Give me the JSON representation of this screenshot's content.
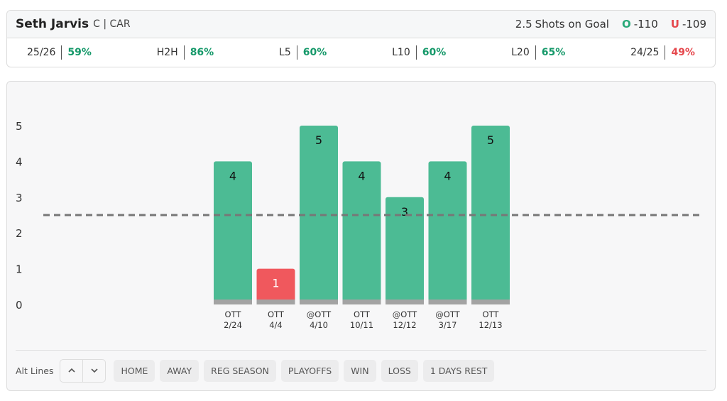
{
  "header": {
    "player": "Seth Jarvis",
    "position": "C | CAR",
    "line": 2.5,
    "stat": "Shots on Goal",
    "over_label": "O",
    "over_odds": -110,
    "under_label": "U",
    "under_odds": -109
  },
  "stats": [
    {
      "label": "25/26",
      "value": "59%",
      "color": "#16996a"
    },
    {
      "label": "H2H",
      "value": "86%",
      "color": "#16996a"
    },
    {
      "label": "L5",
      "value": "60%",
      "color": "#16996a"
    },
    {
      "label": "L10",
      "value": "60%",
      "color": "#16996a"
    },
    {
      "label": "L20",
      "value": "65%",
      "color": "#16996a"
    },
    {
      "label": "24/25",
      "value": "49%",
      "color": "#e5484d"
    }
  ],
  "chart_data": {
    "type": "bar",
    "categories": [
      "OTT",
      "OTT",
      "@OTT",
      "OTT",
      "@OTT",
      "@OTT",
      "OTT"
    ],
    "dates": [
      "2/24",
      "4/4",
      "4/10",
      "10/11",
      "12/12",
      "3/17",
      "12/13"
    ],
    "values": [
      4,
      1,
      5,
      4,
      3,
      4,
      5
    ],
    "over_color": "#4cbb94",
    "under_color": "#f0585d",
    "ylim": [
      0,
      5
    ],
    "yticks": [
      0,
      1,
      2,
      3,
      4,
      5
    ]
  },
  "toolbar": {
    "label": "Alt Lines",
    "filters": [
      "HOME",
      "AWAY",
      "REG SEASON",
      "PLAYOFFS",
      "WIN",
      "LOSS",
      "1 DAYS REST"
    ]
  }
}
